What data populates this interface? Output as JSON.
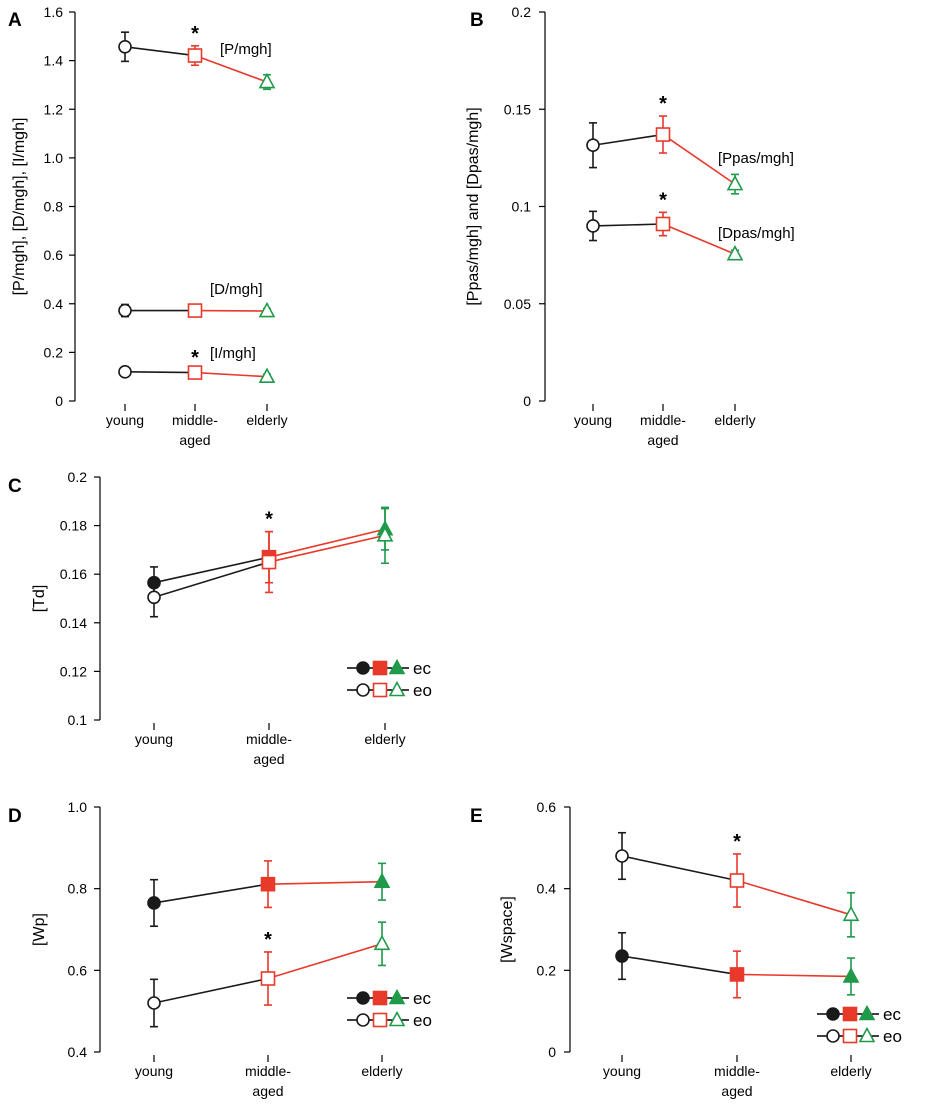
{
  "colors": {
    "young": "#1a1a1a",
    "middle": "#e8392b",
    "elderly": "#1f9a4a",
    "axis": "#000000"
  },
  "chart_data": [
    {
      "panel": "A",
      "type": "line",
      "ylabel": "[P/mgh], [D/mgh], [I/mgh]",
      "ylim": [
        0,
        1.6
      ],
      "ticks": [
        0,
        0.2,
        0.4,
        0.6,
        0.8,
        1.0,
        1.2,
        1.4,
        1.6
      ],
      "tick_labels": [
        "0",
        "0.2",
        "0.4",
        "0.6",
        "0.8",
        "1.0",
        "1.2",
        "1.4",
        "1.6"
      ],
      "categories": [
        "young",
        "middle-\naged",
        "elderly"
      ],
      "series": [
        {
          "name": "[P/mgh]",
          "label": "[P/mgh]",
          "filled": false,
          "values": [
            1.457,
            1.421,
            1.312
          ],
          "errors": [
            0.06,
            0.04,
            0.03
          ],
          "star": true
        },
        {
          "name": "[D/mgh]",
          "label": "[D/mgh]",
          "filled": false,
          "values": [
            0.372,
            0.372,
            0.37
          ],
          "errors": [
            0.025,
            0.01,
            0.01
          ],
          "star": false
        },
        {
          "name": "[I/mgh]",
          "label": "[I/mgh]",
          "filled": false,
          "values": [
            0.12,
            0.117,
            0.1
          ],
          "errors": [
            0.01,
            0.01,
            0.01
          ],
          "star": true
        }
      ]
    },
    {
      "panel": "B",
      "type": "line",
      "ylabel": "[Ppas/mgh] and [Dpas/mgh]",
      "ylim": [
        0,
        0.2
      ],
      "ticks": [
        0,
        0.05,
        0.1,
        0.15,
        0.2
      ],
      "tick_labels": [
        "0",
        "0.05",
        "0.1",
        "0.15",
        "0.2"
      ],
      "categories": [
        "young",
        "middle-\naged",
        "elderly"
      ],
      "series": [
        {
          "name": "[Ppas/mgh]",
          "label": "[Ppas/mgh]",
          "filled": false,
          "values": [
            0.1315,
            0.137,
            0.1115
          ],
          "errors": [
            0.0115,
            0.0095,
            0.005
          ],
          "star": true
        },
        {
          "name": "[Dpas/mgh]",
          "label": "[Dpas/mgh]",
          "filled": false,
          "values": [
            0.09,
            0.091,
            0.0755
          ],
          "errors": [
            0.0075,
            0.006,
            0.002
          ],
          "star": true
        }
      ]
    },
    {
      "panel": "C",
      "type": "line",
      "ylabel": "[Td]",
      "ylim": [
        0.1,
        0.2
      ],
      "ticks": [
        0.1,
        0.12,
        0.14,
        0.16,
        0.18,
        0.2
      ],
      "tick_labels": [
        "0.1",
        "0.12",
        "0.14",
        "0.16",
        "0.18",
        "0.2"
      ],
      "categories": [
        "young",
        "middle-\naged",
        "elderly"
      ],
      "series": [
        {
          "name": "ec",
          "filled": true,
          "values": [
            0.1565,
            0.167,
            0.1785
          ],
          "errors": [
            0.0065,
            0.0105,
            0.0085
          ],
          "star": true
        },
        {
          "name": "eo",
          "filled": false,
          "values": [
            0.1505,
            0.165,
            0.176
          ],
          "errors": [
            0.008,
            0.0125,
            0.0115
          ],
          "star": false
        }
      ],
      "legend": [
        {
          "label": "ec",
          "filled": true
        },
        {
          "label": "eo",
          "filled": false
        }
      ]
    },
    {
      "panel": "D",
      "type": "line",
      "ylabel": "[Wp]",
      "ylim": [
        0.4,
        1.0
      ],
      "ticks": [
        0.4,
        0.6,
        0.8,
        1.0
      ],
      "tick_labels": [
        "0.4",
        "0.6",
        "0.8",
        "1.0"
      ],
      "categories": [
        "young",
        "middle-\naged",
        "elderly"
      ],
      "series": [
        {
          "name": "ec",
          "filled": true,
          "values": [
            0.765,
            0.811,
            0.817
          ],
          "errors": [
            0.057,
            0.057,
            0.045
          ],
          "star": false
        },
        {
          "name": "eo",
          "filled": false,
          "values": [
            0.52,
            0.58,
            0.665
          ],
          "errors": [
            0.058,
            0.065,
            0.053
          ],
          "star": true
        }
      ],
      "legend": [
        {
          "label": "ec",
          "filled": true
        },
        {
          "label": "eo",
          "filled": false
        }
      ]
    },
    {
      "panel": "E",
      "type": "line",
      "ylabel": "[Wspace]",
      "ylim": [
        0,
        0.6
      ],
      "ticks": [
        0,
        0.2,
        0.4,
        0.6
      ],
      "tick_labels": [
        "0",
        "0.2",
        "0.4",
        "0.6"
      ],
      "categories": [
        "young",
        "middle-\naged",
        "elderly"
      ],
      "series": [
        {
          "name": "ec",
          "filled": true,
          "values": [
            0.235,
            0.19,
            0.185
          ],
          "errors": [
            0.057,
            0.057,
            0.045
          ],
          "star": false
        },
        {
          "name": "eo",
          "filled": false,
          "values": [
            0.48,
            0.42,
            0.336
          ],
          "errors": [
            0.057,
            0.065,
            0.054
          ],
          "star": true
        }
      ],
      "legend": [
        {
          "label": "ec",
          "filled": true
        },
        {
          "label": "eo",
          "filled": false
        }
      ]
    }
  ]
}
